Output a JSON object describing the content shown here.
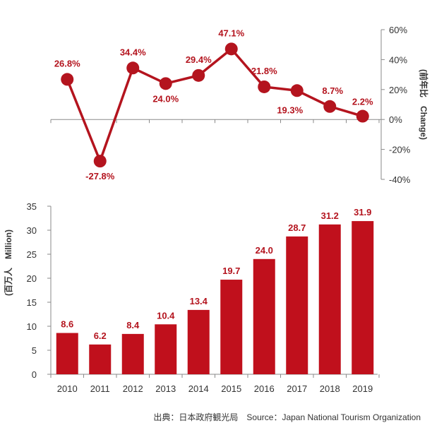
{
  "chart_data": [
    {
      "type": "line",
      "categories": [
        "2010",
        "2011",
        "2012",
        "2013",
        "2014",
        "2015",
        "2016",
        "2017",
        "2018",
        "2019"
      ],
      "values": [
        26.8,
        -27.8,
        34.4,
        24.0,
        29.4,
        47.1,
        21.8,
        19.3,
        8.7,
        2.2
      ],
      "value_labels": [
        "26.8%",
        "-27.8%",
        "34.4%",
        "24.0%",
        "29.4%",
        "47.1%",
        "21.8%",
        "19.3%",
        "8.7%",
        "2.2%"
      ],
      "ylabel": "(前年比　Change)",
      "ylim": [
        -40,
        60
      ],
      "y_ticks": [
        60,
        40,
        20,
        0,
        -20,
        -40
      ],
      "y_tick_labels": [
        "60%",
        "40%",
        "20%",
        "0%",
        "-20%",
        "-40%"
      ],
      "y_axis_side": "right",
      "grid": false,
      "color": "#b4141e"
    },
    {
      "type": "bar",
      "categories": [
        "2010",
        "2011",
        "2012",
        "2013",
        "2014",
        "2015",
        "2016",
        "2017",
        "2018",
        "2019"
      ],
      "values": [
        8.6,
        6.2,
        8.4,
        10.4,
        13.4,
        19.7,
        24.0,
        28.7,
        31.2,
        31.9
      ],
      "value_labels": [
        "8.6",
        "6.2",
        "8.4",
        "10.4",
        "13.4",
        "19.7",
        "24.0",
        "28.7",
        "31.2",
        "31.9"
      ],
      "ylabel": "(百万人　Million)",
      "ylim": [
        0,
        35
      ],
      "y_ticks": [
        0,
        5,
        10,
        15,
        20,
        25,
        30,
        35
      ],
      "grid": false,
      "color": "#c0101c"
    }
  ],
  "source": "出典：日本政府観光局　Source：Japan  National Tourism  Organization"
}
